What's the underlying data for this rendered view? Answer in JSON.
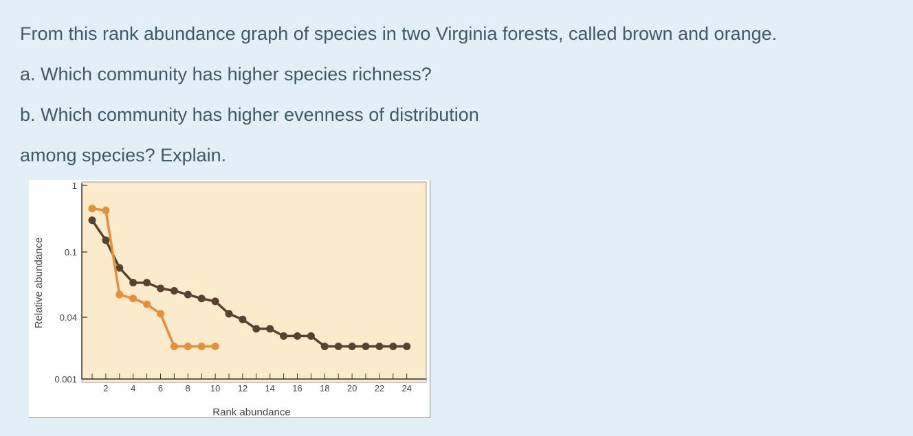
{
  "question": {
    "lines": [
      "From this rank abundance graph of species in two Virginia forests, called brown and orange.",
      "a. Which community has higher species richness?",
      "b. Which community has higher evenness of distribution",
      "among species? Explain."
    ]
  },
  "chart_data": {
    "type": "line",
    "title": "",
    "xlabel": "Rank abundance",
    "ylabel": "Relative abundance",
    "x_ticks": [
      2,
      4,
      6,
      8,
      10,
      12,
      14,
      16,
      18,
      20,
      22,
      24
    ],
    "y_ticks": [
      {
        "label": "1",
        "value": 1
      },
      {
        "label": "0.1",
        "value": 0.1
      },
      {
        "label": "0.04",
        "value": 0.04
      },
      {
        "label": "0.001",
        "value": 0.001
      }
    ],
    "xlim": [
      0,
      25
    ],
    "y_scale": "log",
    "plot_background": "#fbeacb",
    "series": [
      {
        "color": "#5a4030",
        "x": [
          1,
          2,
          3,
          4,
          5,
          6,
          7,
          8,
          9,
          10,
          11,
          12,
          13,
          14,
          15,
          16,
          17,
          18,
          19,
          20,
          21,
          22,
          23,
          24
        ],
        "y": [
          0.3,
          0.15,
          0.08,
          0.065,
          0.065,
          0.06,
          0.058,
          0.055,
          0.052,
          0.05,
          0.042,
          0.035,
          0.02,
          0.02,
          0.013,
          0.013,
          0.013,
          0.007,
          0.007,
          0.007,
          0.007,
          0.007,
          0.007,
          0.007
        ]
      },
      {
        "color": "#e88e38",
        "x": [
          1,
          2,
          3,
          4,
          5,
          6,
          7,
          8,
          9,
          10
        ],
        "y": [
          0.45,
          0.42,
          0.055,
          0.052,
          0.048,
          0.042,
          0.007,
          0.007,
          0.007,
          0.007
        ]
      }
    ]
  }
}
